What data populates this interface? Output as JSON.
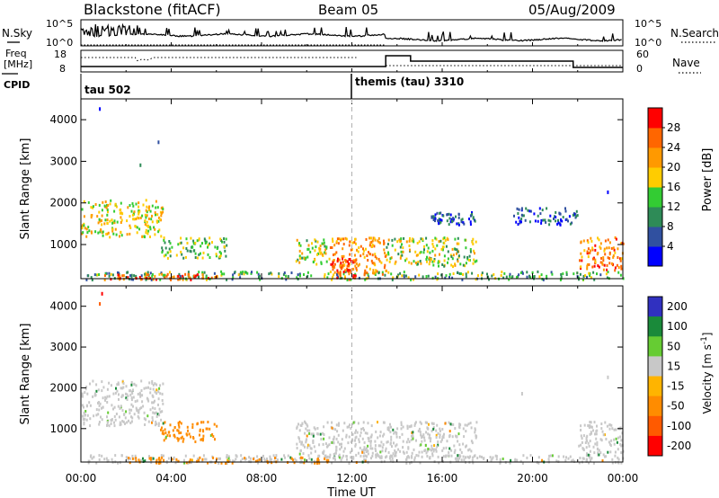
{
  "header": {
    "station": "Blackstone (fitACF)",
    "beam": "Beam 05",
    "date": "05/Aug/2009"
  },
  "panels": {
    "nsky_label": "N.Sky",
    "nsky_ticks": [
      "10^5",
      "10^0"
    ],
    "nsearch_label": "N.Search",
    "nsearch_ticks": [
      "10^5",
      "10^0"
    ],
    "freq_label_1": "Freq",
    "freq_label_2": "[MHz]",
    "freq_ticks": [
      "18",
      "8"
    ],
    "nave_label": "Nave",
    "nave_ticks": [
      "60",
      "0"
    ],
    "cpid_label": "CPID",
    "cpid_1": "tau 502",
    "cpid_2": "themis (tau) 3310"
  },
  "colors": {
    "power": [
      "#0000ff",
      "#3050a0",
      "#2e8b57",
      "#33cc33",
      "#ffcc00",
      "#ff9900",
      "#ff6600",
      "#ff0000"
    ],
    "velocity": [
      "#3030c0",
      "#1a8a3a",
      "#66cc33",
      "#c8c8c8",
      "#ffb400",
      "#ff8c00",
      "#ff5a00",
      "#ff0000"
    ],
    "gray_scatter": "#c8c8c8"
  },
  "chart_data": [
    {
      "type": "heatmap",
      "name": "power",
      "xlabel": "Time UT",
      "ylabel": "Slant Range [km]",
      "xlim": [
        "00:00",
        "24:00"
      ],
      "ylim": [
        180,
        4500
      ],
      "x_ticks": [
        "00:00",
        "04:00",
        "08:00",
        "12:00",
        "16:00",
        "20:00",
        "00:00"
      ],
      "y_ticks": [
        1000,
        2000,
        3000,
        4000
      ],
      "colorbar": {
        "label": "Power [dB]",
        "ticks": [
          "4",
          "8",
          "12",
          "16",
          "20",
          "24",
          "28"
        ],
        "range": [
          0,
          32
        ]
      },
      "regions": [
        {
          "t0": 0.0,
          "t1": 3.6,
          "r0": 1200,
          "r1": 2100,
          "value": 18
        },
        {
          "t0": 0.2,
          "t1": 24.0,
          "r0": 180,
          "r1": 380,
          "value": 12
        },
        {
          "t0": 1.0,
          "t1": 6.0,
          "r0": 180,
          "r1": 320,
          "value": 26
        },
        {
          "t0": 3.5,
          "t1": 6.5,
          "r0": 700,
          "r1": 1200,
          "value": 14
        },
        {
          "t0": 9.5,
          "t1": 11.0,
          "r0": 550,
          "r1": 1150,
          "value": 17
        },
        {
          "t0": 11.0,
          "t1": 13.5,
          "r0": 300,
          "r1": 1200,
          "value": 22
        },
        {
          "t0": 11.0,
          "t1": 12.2,
          "r0": 180,
          "r1": 700,
          "value": 28
        },
        {
          "t0": 13.5,
          "t1": 17.5,
          "r0": 500,
          "r1": 1200,
          "value": 16
        },
        {
          "t0": 15.5,
          "t1": 17.5,
          "r0": 1500,
          "r1": 1800,
          "value": 6
        },
        {
          "t0": 19.0,
          "t1": 22.0,
          "r0": 1500,
          "r1": 1900,
          "value": 6
        },
        {
          "t0": 22.0,
          "t1": 24.0,
          "r0": 400,
          "r1": 1200,
          "value": 24
        }
      ]
    },
    {
      "type": "heatmap",
      "name": "velocity",
      "xlabel": "Time UT",
      "ylabel": "Slant Range [km]",
      "xlim": [
        "00:00",
        "24:00"
      ],
      "ylim": [
        180,
        4500
      ],
      "x_ticks": [
        "00:00",
        "04:00",
        "08:00",
        "12:00",
        "16:00",
        "20:00",
        "00:00"
      ],
      "y_ticks": [
        1000,
        2000,
        3000,
        4000
      ],
      "colorbar": {
        "label": "Velocity [m s^-1]",
        "ticks": [
          "200",
          "100",
          "50",
          "15",
          "-15",
          "-50",
          "-100",
          "-200"
        ]
      },
      "regions": [
        {
          "t0": 0.0,
          "t1": 3.6,
          "r0": 1100,
          "r1": 2200,
          "value": 0
        },
        {
          "t0": 0.2,
          "t1": 24.0,
          "r0": 180,
          "r1": 380,
          "value": 0
        },
        {
          "t0": 2.0,
          "t1": 11.0,
          "r0": 180,
          "r1": 320,
          "value": -60
        },
        {
          "t0": 3.5,
          "t1": 6.0,
          "r0": 700,
          "r1": 1200,
          "value": -70
        },
        {
          "t0": 9.5,
          "t1": 17.5,
          "r0": 300,
          "r1": 1200,
          "value": 0
        },
        {
          "t0": 22.0,
          "t1": 24.0,
          "r0": 350,
          "r1": 1200,
          "value": 0
        }
      ]
    }
  ]
}
